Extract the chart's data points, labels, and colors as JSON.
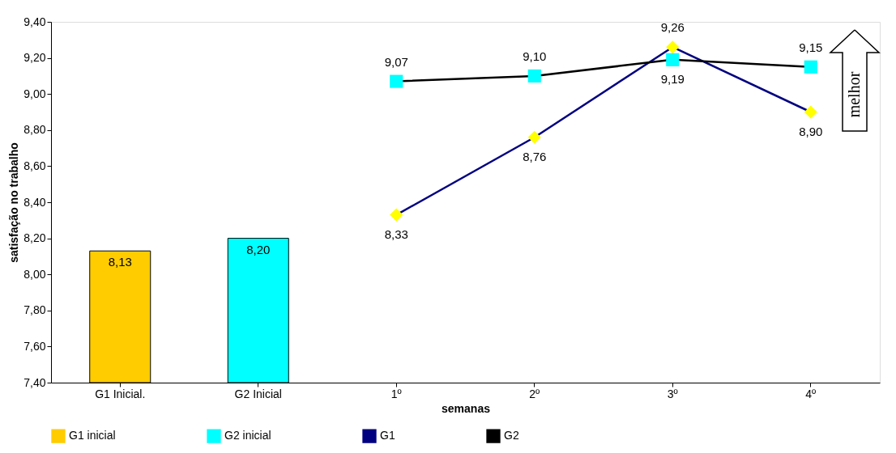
{
  "chart_data": {
    "type": "bar",
    "categories": [
      "G1 Inicial.",
      "G2 Inicial",
      "1º",
      "2º",
      "3º",
      "4º"
    ],
    "xlabel": "semanas",
    "ylabel": "satisfação no trabalho",
    "series": [
      {
        "name": "G1 inicial",
        "color": "#ffcc00",
        "values": [
          8.13,
          null,
          null,
          null,
          null,
          null
        ],
        "value_labels": [
          "8,13",
          null,
          null,
          null,
          null,
          null
        ]
      },
      {
        "name": "G2 inicial",
        "color": "#00ffff",
        "values": [
          null,
          8.2,
          null,
          null,
          null,
          null
        ],
        "value_labels": [
          null,
          "8,20",
          null,
          null,
          null,
          null
        ]
      },
      {
        "name": "G1",
        "type": "line",
        "color": "#000080",
        "marker": "diamond",
        "colors": [
          null,
          null,
          "#ffff00",
          "#ffff00",
          "#ffff00",
          "#ffff00"
        ],
        "values": [
          null,
          null,
          8.33,
          8.76,
          9.26,
          8.9
        ],
        "value_labels": [
          null,
          null,
          "8,33",
          "8,76",
          "9,26",
          "8,90"
        ]
      },
      {
        "name": "G2",
        "type": "line",
        "color": "#000000",
        "marker": "square",
        "colors": [
          null,
          null,
          "#00ffff",
          "#00ffff",
          "#00ffff",
          "#00ffff"
        ],
        "values": [
          null,
          null,
          9.07,
          9.1,
          9.19,
          9.15
        ],
        "value_labels": [
          null,
          null,
          "9,07",
          "9,10",
          "9,19",
          "9,15"
        ]
      }
    ],
    "ylim": [
      7.4,
      9.4
    ],
    "yticks": [
      {
        "value": 7.4,
        "label": "7,40"
      },
      {
        "value": 7.6,
        "label": "7,60"
      },
      {
        "value": 7.8,
        "label": "7,80"
      },
      {
        "value": 8.0,
        "label": "8,00"
      },
      {
        "value": 8.2,
        "label": "8,20"
      },
      {
        "value": 8.4,
        "label": "8,40"
      },
      {
        "value": 8.6,
        "label": "8,60"
      },
      {
        "value": 8.8,
        "label": "8,80"
      },
      {
        "value": 9.0,
        "label": "9,00"
      },
      {
        "value": 9.2,
        "label": "9,20"
      },
      {
        "value": 9.4,
        "label": "9,40"
      }
    ],
    "grid": false,
    "legend": "bottom",
    "annotations": [
      "melhor"
    ]
  }
}
